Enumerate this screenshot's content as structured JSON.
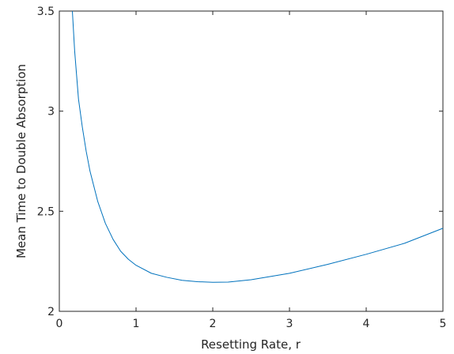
{
  "chart_data": {
    "type": "line",
    "title": "",
    "xlabel": "Resetting Rate, r",
    "ylabel": "Mean Time to Double Absorption",
    "xlim": [
      0,
      5
    ],
    "ylim": [
      2,
      3.5
    ],
    "xticks": [
      0,
      1,
      2,
      3,
      4,
      5
    ],
    "yticks": [
      2,
      2.5,
      3,
      3.5
    ],
    "xtick_labels": [
      "0",
      "1",
      "2",
      "3",
      "4",
      "5"
    ],
    "ytick_labels": [
      "2",
      "2.5",
      "3",
      "3.5"
    ],
    "grid": false,
    "box": true,
    "series": [
      {
        "color": "#0072BD",
        "x": [
          0.17,
          0.2,
          0.25,
          0.3,
          0.35,
          0.4,
          0.5,
          0.6,
          0.7,
          0.8,
          0.9,
          1.0,
          1.2,
          1.4,
          1.6,
          1.8,
          2.0,
          2.2,
          2.5,
          3.0,
          3.5,
          4.0,
          4.5,
          5.0
        ],
        "y": [
          3.5,
          3.3,
          3.06,
          2.92,
          2.8,
          2.7,
          2.55,
          2.44,
          2.36,
          2.3,
          2.26,
          2.23,
          2.19,
          2.17,
          2.155,
          2.148,
          2.145,
          2.146,
          2.158,
          2.19,
          2.235,
          2.285,
          2.34,
          2.415
        ]
      }
    ]
  }
}
